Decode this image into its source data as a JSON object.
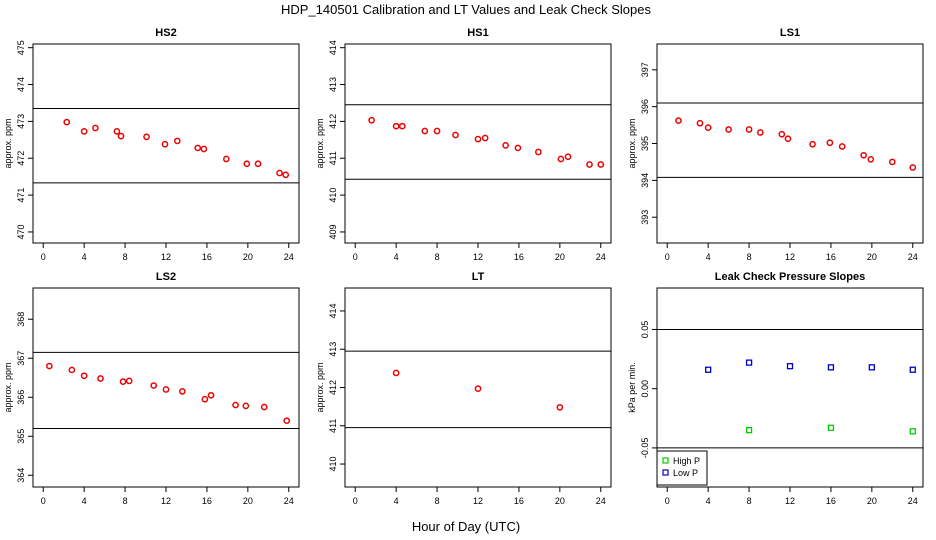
{
  "figure": {
    "title": "HDP_140501  Calibration and LT Values and Leak Check Slopes",
    "xlabel": "Hour of Day (UTC)"
  },
  "chart_data": [
    {
      "type": "scatter",
      "title": "HS2",
      "ylabel": "approx. ppm",
      "xlim": [
        -1,
        25
      ],
      "ylim": [
        469.7,
        475.1
      ],
      "xticks": [
        0,
        4,
        8,
        12,
        16,
        20,
        24
      ],
      "yticks": [
        470,
        471,
        472,
        473,
        474,
        475
      ],
      "hlines": [
        473.35,
        471.33
      ],
      "color": "#ee0000",
      "x": [
        2.3,
        4.0,
        5.1,
        7.2,
        7.6,
        10.1,
        11.9,
        13.1,
        15.1,
        15.7,
        17.9,
        19.9,
        21.0,
        23.1,
        23.7
      ],
      "y": [
        472.98,
        472.73,
        472.82,
        472.73,
        472.6,
        472.58,
        472.38,
        472.47,
        472.28,
        472.25,
        471.98,
        471.85,
        471.85,
        471.6,
        471.55
      ]
    },
    {
      "type": "scatter",
      "title": "HS1",
      "ylabel": "approx. ppm",
      "xlim": [
        -1,
        25
      ],
      "ylim": [
        408.7,
        414.1
      ],
      "xticks": [
        0,
        4,
        8,
        12,
        16,
        20,
        24
      ],
      "yticks": [
        409,
        410,
        411,
        412,
        413,
        414
      ],
      "hlines": [
        412.45,
        410.43
      ],
      "color": "#ee0000",
      "x": [
        1.6,
        4.0,
        4.6,
        6.8,
        8.0,
        9.8,
        12.0,
        12.7,
        14.7,
        15.9,
        17.9,
        20.1,
        20.8,
        22.9,
        24.0
      ],
      "y": [
        412.03,
        411.87,
        411.87,
        411.74,
        411.74,
        411.63,
        411.52,
        411.55,
        411.35,
        411.28,
        411.17,
        410.98,
        411.04,
        410.83,
        410.83
      ]
    },
    {
      "type": "scatter",
      "title": "LS1",
      "ylabel": "approx. ppm",
      "xlim": [
        -1,
        25
      ],
      "ylim": [
        392.3,
        397.7
      ],
      "xticks": [
        0,
        4,
        8,
        12,
        16,
        20,
        24
      ],
      "yticks": [
        393,
        394,
        395,
        396,
        397
      ],
      "hlines": [
        396.1,
        394.08
      ],
      "color": "#ee0000",
      "x": [
        1.1,
        3.2,
        4.0,
        6.0,
        8.0,
        9.1,
        11.2,
        11.8,
        14.2,
        15.9,
        17.1,
        19.2,
        19.9,
        22.0,
        24.0
      ],
      "y": [
        395.62,
        395.55,
        395.43,
        395.38,
        395.38,
        395.3,
        395.25,
        395.13,
        394.98,
        395.02,
        394.92,
        394.68,
        394.57,
        394.5,
        394.35
      ]
    },
    {
      "type": "scatter",
      "title": "LS2",
      "ylabel": "approx. ppm",
      "xlim": [
        -1,
        25
      ],
      "ylim": [
        363.7,
        368.8
      ],
      "xticks": [
        0,
        4,
        8,
        12,
        16,
        20,
        24
      ],
      "yticks": [
        364,
        365,
        366,
        367,
        368
      ],
      "hlines": [
        367.15,
        365.2
      ],
      "color": "#ee0000",
      "x": [
        0.6,
        2.8,
        4.0,
        5.6,
        7.8,
        8.4,
        10.8,
        12.0,
        13.6,
        15.8,
        16.4,
        18.8,
        19.8,
        21.6,
        23.8
      ],
      "y": [
        366.8,
        366.7,
        366.55,
        366.48,
        366.4,
        366.42,
        366.3,
        366.2,
        366.15,
        365.95,
        366.05,
        365.8,
        365.78,
        365.75,
        365.4
      ]
    },
    {
      "type": "scatter",
      "title": "LT",
      "ylabel": "approx. ppm",
      "xlim": [
        -1,
        25
      ],
      "ylim": [
        409.4,
        414.6
      ],
      "xticks": [
        0,
        4,
        8,
        12,
        16,
        20,
        24
      ],
      "yticks": [
        410,
        411,
        412,
        413,
        414
      ],
      "hlines": [
        412.95,
        410.95
      ],
      "color": "#ee0000",
      "x": [
        4.0,
        12.0,
        20.0
      ],
      "y": [
        412.38,
        411.97,
        411.48
      ]
    },
    {
      "type": "scatter",
      "title": "Leak Check Pressure Slopes",
      "ylabel": "kPa per min.",
      "xlim": [
        -1,
        25
      ],
      "ylim": [
        -0.083,
        0.085
      ],
      "xticks": [
        0,
        4,
        8,
        12,
        16,
        20,
        24
      ],
      "yticks": [
        -0.05,
        0.0,
        0.05
      ],
      "ytick_labels": [
        "-0.05",
        "0.00",
        "0.05"
      ],
      "hlines": [
        0.05,
        -0.05
      ],
      "legend": "bottom-left",
      "series": [
        {
          "name": "High P",
          "color": "#00cc00",
          "x": [
            8,
            16,
            24
          ],
          "y": [
            -0.035,
            -0.033,
            -0.036
          ]
        },
        {
          "name": "Low P",
          "color": "#0000cc",
          "x": [
            4,
            8,
            12,
            16,
            20,
            24
          ],
          "y": [
            0.016,
            0.022,
            0.019,
            0.018,
            0.018,
            0.016
          ]
        }
      ]
    }
  ]
}
